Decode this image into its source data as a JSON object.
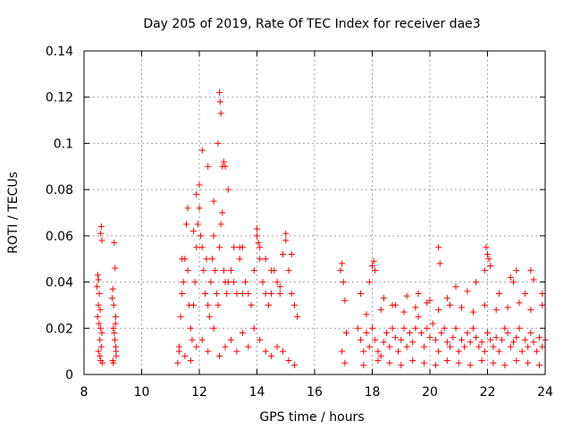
{
  "chart_data": {
    "type": "scatter",
    "title": "Day 205 of 2019, Rate Of TEC Index for receiver dae3",
    "xlabel": "GPS time / hours",
    "ylabel": "ROTI / TECUs",
    "xlim": [
      8,
      24
    ],
    "ylim": [
      0,
      0.14
    ],
    "xticks": [
      "8",
      "10",
      "12",
      "14",
      "16",
      "18",
      "20",
      "22",
      "24"
    ],
    "yticks": [
      "0",
      "0.02",
      "0.04",
      "0.06",
      "0.08",
      "0.1",
      "0.12",
      "0.14"
    ],
    "grid": true,
    "marker": "+",
    "color": "#ff0000",
    "series": [
      {
        "x": [
          8.45,
          8.48,
          8.5,
          8.52,
          8.55,
          8.58,
          8.6,
          8.62,
          8.5,
          8.55,
          8.58,
          8.6,
          8.47,
          8.53,
          8.57,
          8.62,
          8.64,
          8.5,
          8.56,
          8.98,
          9.0,
          9.02,
          9.05,
          9.08,
          9.1,
          9.12,
          9.0,
          9.05,
          9.1,
          9.03,
          9.07,
          9.11,
          9.02,
          9.09,
          11.25,
          11.3,
          11.35,
          11.4,
          11.45,
          11.5,
          11.55,
          11.6,
          11.65,
          11.7,
          11.75,
          11.8,
          11.85,
          11.9,
          11.95,
          12.0,
          12.05,
          12.1,
          12.15,
          12.2,
          12.25,
          12.3,
          12.35,
          12.4,
          12.45,
          12.5,
          12.55,
          12.6,
          12.65,
          12.7,
          12.75,
          12.8,
          12.85,
          12.9,
          12.95,
          13.0,
          13.1,
          13.2,
          13.3,
          13.4,
          13.5,
          13.6,
          13.7,
          13.8,
          13.9,
          14.0,
          14.1,
          14.2,
          14.3,
          14.4,
          14.5,
          14.6,
          14.7,
          14.8,
          14.9,
          15.0,
          15.1,
          15.2,
          15.3,
          15.4,
          11.4,
          11.6,
          11.8,
          11.9,
          12.0,
          12.1,
          12.3,
          12.5,
          12.65,
          12.7,
          12.72,
          12.75,
          12.8,
          12.85,
          12.9,
          13.0,
          13.2,
          13.4,
          13.5,
          14.0,
          14.05,
          14.1,
          14.3,
          14.5,
          14.8,
          15.0,
          15.2,
          11.3,
          11.5,
          11.7,
          11.9,
          12.1,
          12.3,
          12.5,
          12.7,
          12.9,
          13.1,
          13.3,
          13.5,
          13.7,
          13.9,
          14.1,
          14.3,
          14.5,
          14.7,
          14.9,
          15.1,
          15.3,
          16.9,
          16.95,
          17.0,
          17.05,
          17.1,
          16.95,
          17.05,
          17.5,
          17.6,
          17.7,
          17.8,
          17.9,
          18.0,
          18.1,
          18.2,
          18.3,
          18.4,
          18.5,
          18.6,
          18.7,
          18.8,
          18.9,
          19.0,
          19.1,
          19.2,
          19.3,
          19.4,
          19.5,
          19.6,
          19.7,
          19.8,
          19.9,
          20.0,
          20.1,
          20.2,
          20.3,
          20.4,
          20.5,
          20.6,
          20.7,
          20.8,
          20.9,
          21.0,
          21.1,
          21.2,
          21.3,
          21.4,
          21.5,
          21.6,
          21.7,
          21.8,
          21.9,
          22.0,
          22.1,
          22.2,
          22.3,
          22.4,
          22.5,
          22.6,
          22.7,
          22.8,
          22.9,
          23.0,
          23.1,
          23.2,
          23.3,
          23.4,
          23.5,
          23.6,
          23.7,
          23.8,
          23.9,
          24.0,
          17.6,
          17.9,
          18.0,
          18.05,
          18.1,
          18.4,
          18.8,
          19.2,
          19.6,
          20.0,
          20.3,
          20.35,
          20.6,
          20.9,
          21.3,
          21.6,
          21.9,
          21.95,
          22.0,
          22.05,
          22.1,
          22.4,
          22.8,
          22.9,
          23.0,
          23.3,
          23.5,
          23.6,
          23.9,
          17.7,
          18.2,
          18.6,
          19.0,
          19.4,
          19.8,
          20.2,
          20.6,
          21.0,
          21.4,
          21.8,
          22.2,
          22.6,
          23.0,
          23.4,
          23.8,
          17.8,
          18.3,
          18.7,
          19.1,
          19.5,
          19.9,
          20.3,
          20.7,
          21.1,
          21.5,
          21.9,
          22.3,
          22.7,
          23.1,
          23.5,
          23.9
        ],
        "y": [
          0.038,
          0.043,
          0.03,
          0.022,
          0.015,
          0.061,
          0.064,
          0.058,
          0.01,
          0.008,
          0.006,
          0.012,
          0.025,
          0.035,
          0.02,
          0.018,
          0.005,
          0.041,
          0.028,
          0.033,
          0.037,
          0.02,
          0.057,
          0.046,
          0.012,
          0.008,
          0.006,
          0.018,
          0.025,
          0.03,
          0.015,
          0.01,
          0.005,
          0.022,
          0.005,
          0.012,
          0.025,
          0.035,
          0.04,
          0.05,
          0.065,
          0.045,
          0.03,
          0.02,
          0.015,
          0.03,
          0.04,
          0.055,
          0.065,
          0.072,
          0.06,
          0.055,
          0.045,
          0.035,
          0.05,
          0.03,
          0.025,
          0.04,
          0.05,
          0.06,
          0.045,
          0.035,
          0.03,
          0.055,
          0.065,
          0.07,
          0.045,
          0.04,
          0.035,
          0.04,
          0.045,
          0.04,
          0.035,
          0.05,
          0.055,
          0.04,
          0.035,
          0.03,
          0.045,
          0.06,
          0.05,
          0.04,
          0.035,
          0.03,
          0.035,
          0.045,
          0.04,
          0.035,
          0.052,
          0.058,
          0.045,
          0.035,
          0.03,
          0.025,
          0.05,
          0.072,
          0.062,
          0.078,
          0.082,
          0.097,
          0.09,
          0.075,
          0.1,
          0.122,
          0.118,
          0.113,
          0.09,
          0.092,
          0.09,
          0.08,
          0.055,
          0.055,
          0.035,
          0.063,
          0.057,
          0.055,
          0.05,
          0.045,
          0.038,
          0.061,
          0.052,
          0.01,
          0.008,
          0.006,
          0.012,
          0.015,
          0.01,
          0.02,
          0.008,
          0.012,
          0.015,
          0.01,
          0.018,
          0.012,
          0.02,
          0.015,
          0.01,
          0.008,
          0.012,
          0.01,
          0.006,
          0.004,
          0.045,
          0.048,
          0.04,
          0.032,
          0.018,
          0.01,
          0.005,
          0.02,
          0.015,
          0.01,
          0.018,
          0.012,
          0.02,
          0.015,
          0.01,
          0.008,
          0.014,
          0.018,
          0.012,
          0.02,
          0.016,
          0.01,
          0.015,
          0.02,
          0.012,
          0.018,
          0.014,
          0.02,
          0.025,
          0.018,
          0.012,
          0.02,
          0.016,
          0.022,
          0.015,
          0.01,
          0.018,
          0.02,
          0.014,
          0.012,
          0.016,
          0.02,
          0.01,
          0.015,
          0.012,
          0.018,
          0.014,
          0.02,
          0.016,
          0.012,
          0.014,
          0.01,
          0.018,
          0.015,
          0.012,
          0.016,
          0.01,
          0.015,
          0.02,
          0.018,
          0.012,
          0.014,
          0.016,
          0.02,
          0.01,
          0.015,
          0.012,
          0.018,
          0.014,
          0.01,
          0.016,
          0.012,
          0.015,
          0.035,
          0.04,
          0.047,
          0.049,
          0.045,
          0.033,
          0.03,
          0.034,
          0.035,
          0.032,
          0.055,
          0.048,
          0.033,
          0.038,
          0.036,
          0.04,
          0.045,
          0.055,
          0.052,
          0.05,
          0.047,
          0.035,
          0.042,
          0.04,
          0.045,
          0.035,
          0.045,
          0.041,
          0.035,
          0.004,
          0.006,
          0.005,
          0.004,
          0.006,
          0.005,
          0.004,
          0.006,
          0.005,
          0.004,
          0.006,
          0.005,
          0.004,
          0.006,
          0.005,
          0.004,
          0.026,
          0.028,
          0.03,
          0.027,
          0.029,
          0.031,
          0.028,
          0.03,
          0.029,
          0.027,
          0.03,
          0.028,
          0.029,
          0.031,
          0.028,
          0.03
        ]
      }
    ]
  }
}
